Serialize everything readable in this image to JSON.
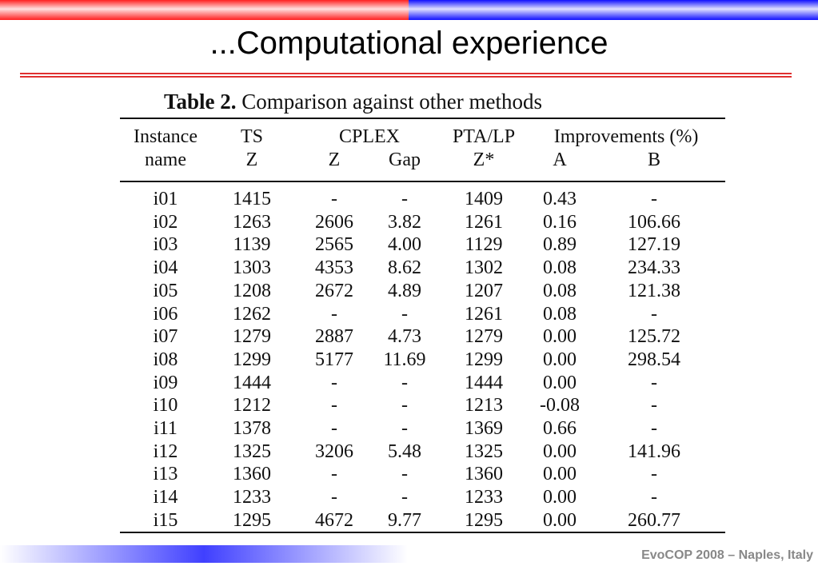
{
  "header": {
    "title": "...Computational experience"
  },
  "table": {
    "caption_label": "Table 2.",
    "caption": "Comparison against other methods",
    "header_top": [
      "Instance",
      "TS",
      "CPLEX",
      "PTA/LP",
      "Improvements (%)"
    ],
    "header_bottom": [
      "name",
      "Z",
      "Z",
      "Gap",
      "Z*",
      "A",
      "B"
    ],
    "rows": [
      [
        "i01",
        "1415",
        "-",
        "-",
        "1409",
        "0.43",
        "-"
      ],
      [
        "i02",
        "1263",
        "2606",
        "3.82",
        "1261",
        "0.16",
        "106.66"
      ],
      [
        "i03",
        "1139",
        "2565",
        "4.00",
        "1129",
        "0.89",
        "127.19"
      ],
      [
        "i04",
        "1303",
        "4353",
        "8.62",
        "1302",
        "0.08",
        "234.33"
      ],
      [
        "i05",
        "1208",
        "2672",
        "4.89",
        "1207",
        "0.08",
        "121.38"
      ],
      [
        "i06",
        "1262",
        "-",
        "-",
        "1261",
        "0.08",
        "-"
      ],
      [
        "i07",
        "1279",
        "2887",
        "4.73",
        "1279",
        "0.00",
        "125.72"
      ],
      [
        "i08",
        "1299",
        "5177",
        "11.69",
        "1299",
        "0.00",
        "298.54"
      ],
      [
        "i09",
        "1444",
        "-",
        "-",
        "1444",
        "0.00",
        "-"
      ],
      [
        "i10",
        "1212",
        "-",
        "-",
        "1213",
        "-0.08",
        "-"
      ],
      [
        "i11",
        "1378",
        "-",
        "-",
        "1369",
        "0.66",
        "-"
      ],
      [
        "i12",
        "1325",
        "3206",
        "5.48",
        "1325",
        "0.00",
        "141.96"
      ],
      [
        "i13",
        "1360",
        "-",
        "-",
        "1360",
        "0.00",
        "-"
      ],
      [
        "i14",
        "1233",
        "-",
        "-",
        "1233",
        "0.00",
        "-"
      ],
      [
        "i15",
        "1295",
        "4672",
        "9.77",
        "1295",
        "0.00",
        "260.77"
      ]
    ]
  },
  "footer": {
    "text": "EvoCOP 2008 – Naples, Italy"
  }
}
